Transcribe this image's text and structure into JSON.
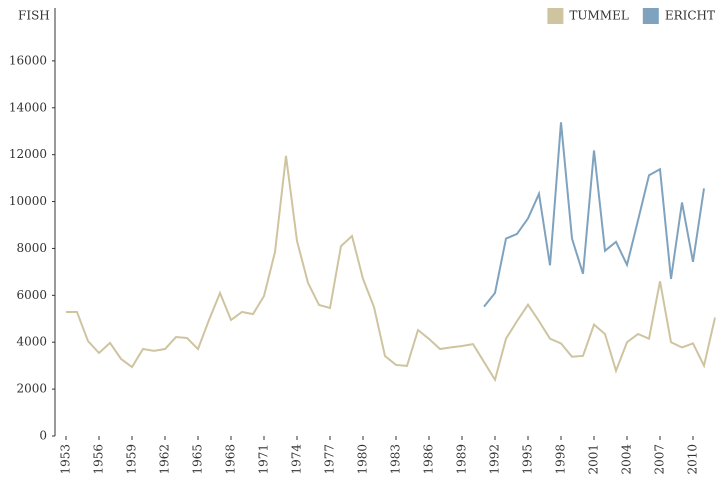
{
  "chart_data": {
    "type": "line",
    "y_label": "FISH",
    "x": [
      1953,
      1954,
      1955,
      1956,
      1957,
      1958,
      1959,
      1960,
      1961,
      1962,
      1963,
      1964,
      1965,
      1966,
      1967,
      1968,
      1969,
      1970,
      1971,
      1972,
      1973,
      1974,
      1975,
      1976,
      1977,
      1978,
      1979,
      1980,
      1981,
      1982,
      1983,
      1984,
      1985,
      1986,
      1987,
      1988,
      1989,
      1990,
      1991,
      1992,
      1993,
      1994,
      1995,
      1996,
      1997,
      1998,
      1999,
      2000,
      2001,
      2002,
      2003,
      2004,
      2005,
      2006,
      2007,
      2008,
      2009,
      2010,
      2011,
      2012
    ],
    "series": [
      {
        "name": "TUMMEL",
        "color": "#cfc4a0",
        "values": [
          5290,
          5290,
          4050,
          3540,
          3970,
          3290,
          2940,
          3710,
          3630,
          3710,
          4220,
          4180,
          3710,
          4950,
          6100,
          4950,
          5290,
          5200,
          5970,
          7850,
          11950,
          8320,
          6530,
          5590,
          5460,
          8100,
          8530,
          6700,
          5500,
          3410,
          3030,
          2990,
          4520,
          4140,
          3710,
          3780,
          3840,
          3920,
          3160,
          2400,
          4150,
          4900,
          5600,
          4900,
          4150,
          3950,
          3380,
          3420,
          4750,
          4350,
          2780,
          4000,
          4350,
          4150,
          6600,
          4000,
          3780,
          3950,
          3000,
          5050
        ]
      },
      {
        "name": "ERICHT",
        "color": "#7fa3bf",
        "values": [
          null,
          null,
          null,
          null,
          null,
          null,
          null,
          null,
          null,
          null,
          null,
          null,
          null,
          null,
          null,
          null,
          null,
          null,
          null,
          null,
          null,
          null,
          null,
          null,
          null,
          null,
          null,
          null,
          null,
          null,
          null,
          null,
          null,
          null,
          null,
          null,
          null,
          null,
          5520,
          6100,
          8420,
          8620,
          9280,
          10330,
          7280,
          13380,
          8420,
          6920,
          12180,
          7900,
          8280,
          7300,
          9200,
          11120,
          11380,
          6700,
          9960,
          7430,
          10560,
          null
        ]
      }
    ],
    "xlim": [
      1952,
      2012
    ],
    "xticks": [
      1953,
      1956,
      1959,
      1962,
      1965,
      1968,
      1971,
      1974,
      1977,
      1980,
      1983,
      1986,
      1989,
      1992,
      1995,
      1998,
      2001,
      2004,
      2007,
      2010
    ],
    "ylim": [
      0,
      18000
    ],
    "yticks": [
      0,
      2000,
      4000,
      6000,
      8000,
      10000,
      12000,
      14000,
      16000
    ],
    "grid": false,
    "legend": "top-right"
  }
}
